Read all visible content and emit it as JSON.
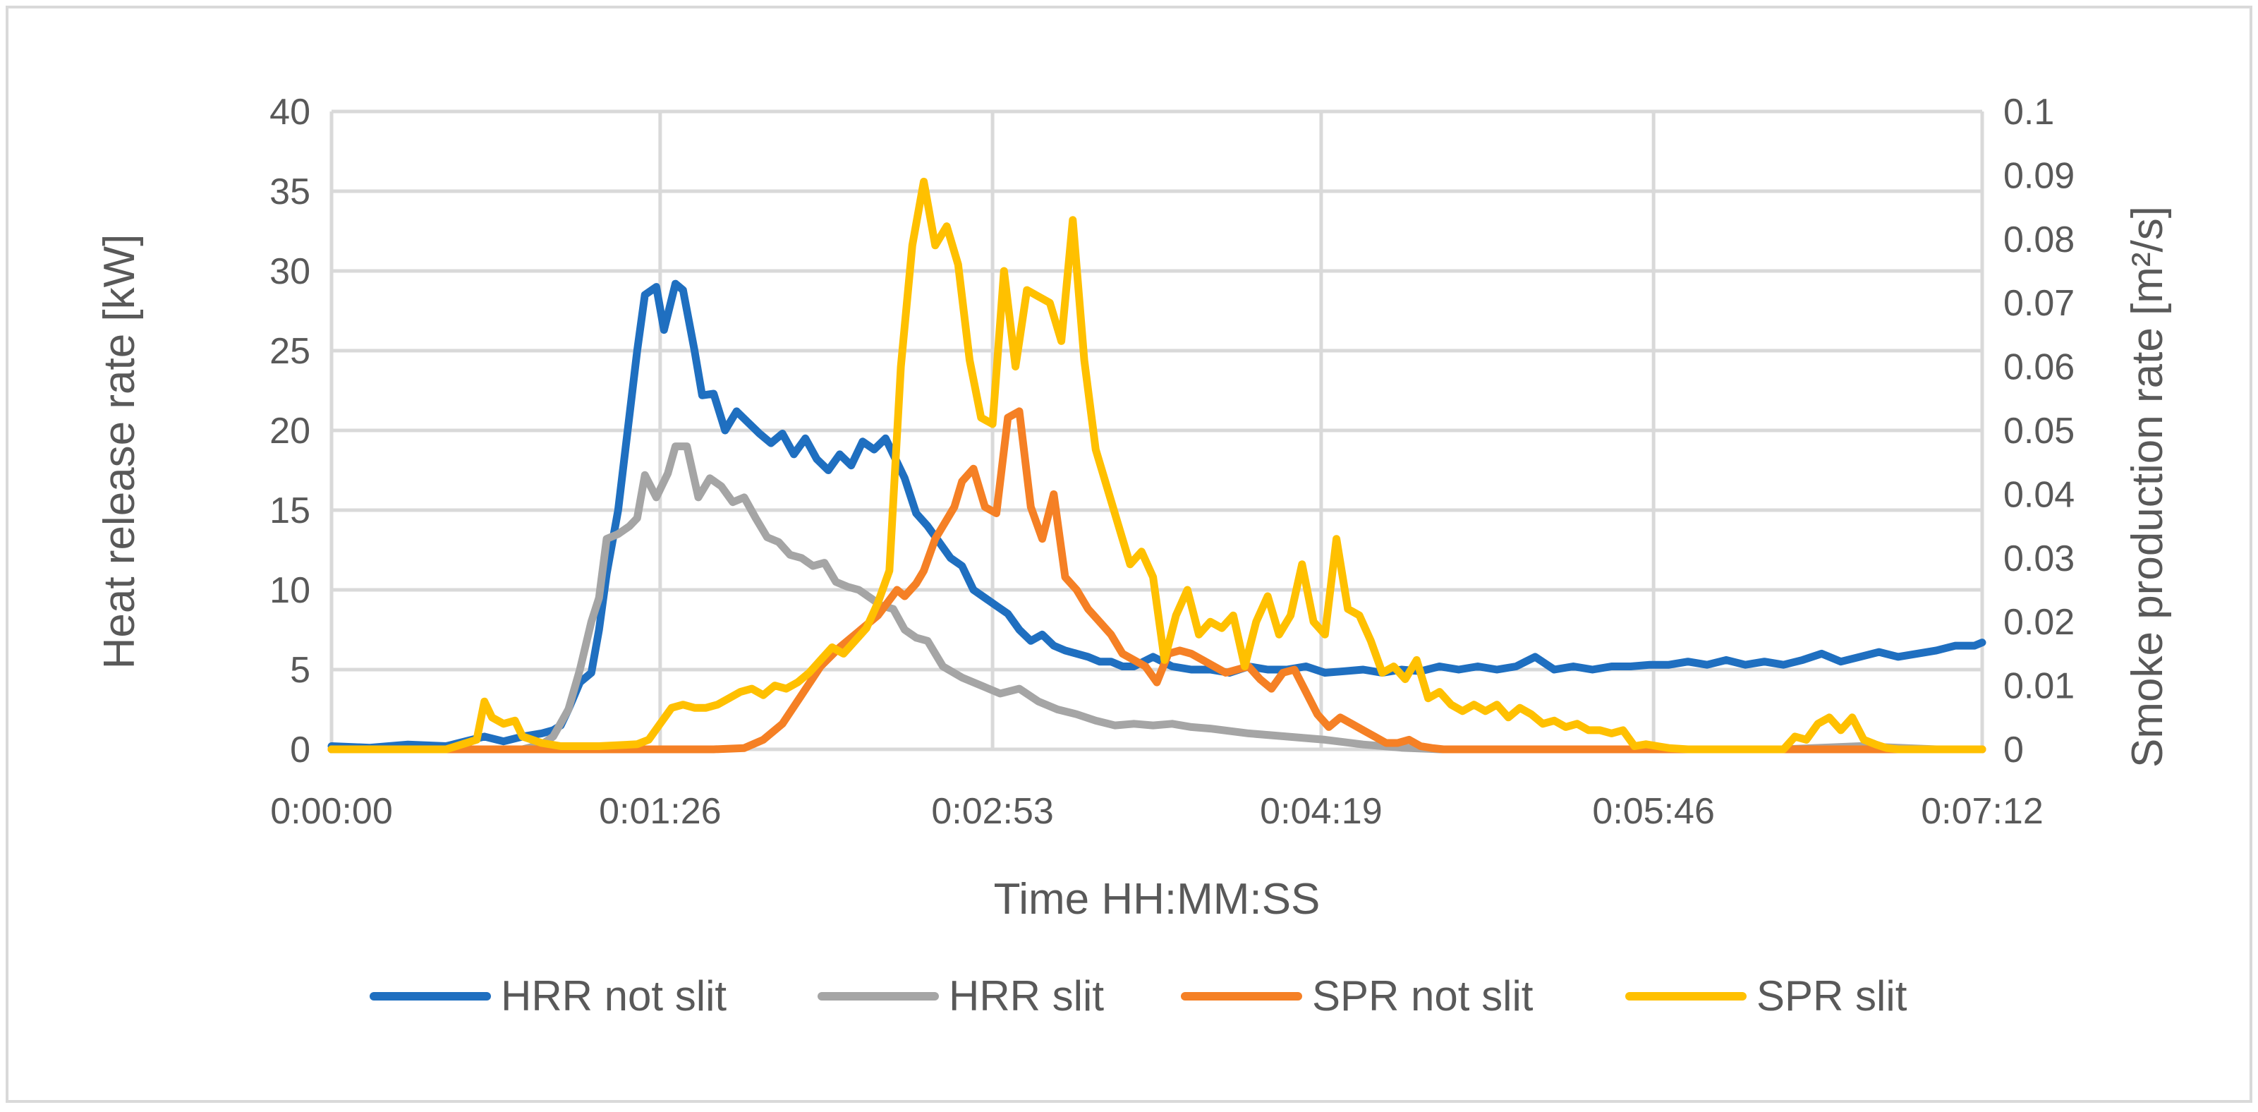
{
  "chart_data": {
    "type": "line",
    "title": "",
    "xlabel": "Time HH:MM:SS",
    "ylabel_left": "Heat release rate [kW]",
    "ylabel_right": "Smoke production rate [m²/s]",
    "x_unit": "seconds",
    "xlim": [
      0,
      432
    ],
    "x_ticks": [
      {
        "value": 0,
        "label": "0:00:00"
      },
      {
        "value": 86,
        "label": "0:01:26"
      },
      {
        "value": 173,
        "label": "0:02:53"
      },
      {
        "value": 259,
        "label": "0:04:19"
      },
      {
        "value": 346,
        "label": "0:05:46"
      },
      {
        "value": 432,
        "label": "0:07:12"
      }
    ],
    "ylim_left": [
      0,
      40
    ],
    "y_ticks_left": [
      "0",
      "5",
      "10",
      "15",
      "20",
      "25",
      "30",
      "35",
      "40"
    ],
    "ylim_right": [
      0,
      0.1
    ],
    "y_ticks_right": [
      "0",
      "0.01",
      "0.02",
      "0.03",
      "0.04",
      "0.05",
      "0.06",
      "0.07",
      "0.08",
      "0.09",
      "0.1"
    ],
    "grid": true,
    "legend_position": "bottom",
    "series": [
      {
        "name": "HRR not slit",
        "axis": "left",
        "color": "#1f6fc0",
        "x": [
          0,
          10,
          20,
          30,
          35,
          40,
          45,
          50,
          55,
          58,
          60,
          62,
          65,
          68,
          70,
          72,
          75,
          78,
          80,
          82,
          85,
          87,
          90,
          92,
          95,
          97,
          100,
          103,
          106,
          109,
          112,
          115,
          118,
          121,
          124,
          127,
          130,
          133,
          136,
          139,
          142,
          145,
          148,
          150,
          153,
          156,
          159,
          162,
          165,
          168,
          171,
          174,
          177,
          180,
          183,
          186,
          189,
          192,
          195,
          198,
          201,
          204,
          207,
          210,
          215,
          220,
          225,
          230,
          235,
          240,
          245,
          250,
          255,
          260,
          265,
          270,
          275,
          280,
          285,
          290,
          295,
          300,
          305,
          310,
          315,
          320,
          325,
          330,
          335,
          340,
          345,
          350,
          355,
          360,
          365,
          370,
          375,
          380,
          385,
          390,
          395,
          400,
          405,
          410,
          415,
          420,
          425,
          430,
          432
        ],
        "y": [
          0.2,
          0.1,
          0.3,
          0.2,
          0.5,
          0.8,
          0.5,
          0.8,
          1.0,
          1.2,
          1.5,
          2.5,
          4.2,
          4.8,
          7.5,
          11,
          15,
          21,
          25,
          28.5,
          29,
          26.3,
          29.2,
          28.8,
          25,
          22.2,
          22.3,
          20,
          21.2,
          20.5,
          19.8,
          19.2,
          19.8,
          18.5,
          19.5,
          18.2,
          17.5,
          18.5,
          17.8,
          19.3,
          18.8,
          19.5,
          18,
          17,
          14.8,
          14,
          13,
          12,
          11.5,
          10,
          9.5,
          9,
          8.5,
          7.5,
          6.8,
          7.2,
          6.5,
          6.2,
          6.0,
          5.8,
          5.5,
          5.5,
          5.2,
          5.2,
          5.8,
          5.2,
          5.0,
          5.0,
          4.8,
          5.2,
          5.0,
          5.0,
          5.2,
          4.8,
          4.9,
          5.0,
          4.8,
          5.0,
          4.9,
          5.2,
          5.0,
          5.2,
          5.0,
          5.2,
          5.8,
          5.0,
          5.2,
          5.0,
          5.2,
          5.2,
          5.3,
          5.3,
          5.5,
          5.3,
          5.6,
          5.3,
          5.5,
          5.3,
          5.6,
          6.0,
          5.5,
          5.8,
          6.1,
          5.8,
          6.0,
          6.2,
          6.5,
          6.5,
          6.7
        ]
      },
      {
        "name": "HRR slit",
        "axis": "left",
        "color": "#a5a5a5",
        "x": [
          0,
          20,
          40,
          50,
          55,
          58,
          62,
          65,
          68,
          70,
          72,
          75,
          78,
          80,
          82,
          85,
          88,
          90,
          93,
          96,
          99,
          102,
          105,
          108,
          111,
          114,
          117,
          120,
          123,
          126,
          129,
          132,
          135,
          138,
          141,
          144,
          147,
          150,
          153,
          156,
          160,
          165,
          170,
          175,
          180,
          185,
          190,
          195,
          200,
          205,
          210,
          215,
          220,
          225,
          230,
          240,
          250,
          260,
          270,
          280,
          290,
          300,
          320,
          340,
          360,
          380,
          400,
          420,
          432
        ],
        "y": [
          0,
          0,
          0,
          0,
          0.3,
          0.8,
          2.5,
          5.0,
          8.0,
          9.5,
          13.2,
          13.5,
          14,
          14.5,
          17.2,
          15.8,
          17.3,
          19,
          19,
          15.8,
          17,
          16.5,
          15.5,
          15.8,
          14.5,
          13.3,
          13,
          12.2,
          12.0,
          11.5,
          11.7,
          10.5,
          10.2,
          10,
          9.5,
          9.0,
          8.8,
          7.5,
          7,
          6.8,
          5.2,
          4.5,
          4.0,
          3.5,
          3.8,
          3.0,
          2.5,
          2.2,
          1.8,
          1.5,
          1.6,
          1.5,
          1.6,
          1.4,
          1.3,
          1.0,
          0.8,
          0.6,
          0.3,
          0.1,
          0,
          0,
          0,
          0,
          0,
          0,
          0.2,
          0,
          0
        ]
      },
      {
        "name": "SPR not slit",
        "axis": "right",
        "color": "#f58025",
        "x": [
          0,
          50,
          100,
          108,
          113,
          118,
          123,
          128,
          133,
          138,
          143,
          148,
          150,
          153,
          155,
          158,
          160,
          163,
          165,
          168,
          171,
          174,
          177,
          180,
          183,
          186,
          189,
          192,
          195,
          198,
          201,
          204,
          207,
          210,
          213,
          216,
          219,
          222,
          225,
          228,
          231,
          234,
          237,
          240,
          243,
          246,
          249,
          252,
          255,
          258,
          261,
          264,
          267,
          270,
          273,
          276,
          279,
          282,
          285,
          288,
          291,
          294,
          297,
          300,
          432
        ],
        "y": [
          0,
          0,
          0,
          0.0002,
          0.0015,
          0.004,
          0.0085,
          0.013,
          0.016,
          0.0185,
          0.021,
          0.025,
          0.024,
          0.026,
          0.028,
          0.033,
          0.035,
          0.038,
          0.042,
          0.044,
          0.038,
          0.037,
          0.052,
          0.053,
          0.038,
          0.033,
          0.04,
          0.027,
          0.025,
          0.022,
          0.02,
          0.018,
          0.015,
          0.014,
          0.013,
          0.0105,
          0.015,
          0.0155,
          0.015,
          0.014,
          0.013,
          0.012,
          0.0125,
          0.013,
          0.011,
          0.0095,
          0.012,
          0.0125,
          0.009,
          0.0055,
          0.0035,
          0.005,
          0.004,
          0.003,
          0.002,
          0.001,
          0.001,
          0.0015,
          0.0005,
          0.0002,
          0,
          0,
          0,
          0,
          0
        ]
      },
      {
        "name": "SPR slit",
        "axis": "right",
        "color": "#ffc000",
        "x": [
          0,
          30,
          38,
          40,
          42,
          45,
          48,
          50,
          55,
          60,
          70,
          80,
          83,
          86,
          89,
          92,
          95,
          98,
          101,
          104,
          107,
          110,
          113,
          116,
          119,
          122,
          125,
          128,
          131,
          134,
          137,
          140,
          143,
          146,
          149,
          152,
          155,
          158,
          161,
          164,
          167,
          170,
          173,
          176,
          179,
          182,
          185,
          188,
          191,
          194,
          197,
          200,
          203,
          206,
          209,
          212,
          215,
          218,
          221,
          224,
          227,
          230,
          233,
          236,
          239,
          242,
          245,
          248,
          251,
          254,
          257,
          260,
          263,
          266,
          269,
          272,
          275,
          278,
          281,
          284,
          287,
          290,
          293,
          296,
          299,
          302,
          305,
          308,
          311,
          314,
          317,
          320,
          323,
          326,
          329,
          332,
          335,
          338,
          341,
          344,
          347,
          350,
          355,
          360,
          365,
          370,
          375,
          380,
          383,
          386,
          389,
          392,
          395,
          398,
          401,
          404,
          407,
          410,
          420,
          432
        ],
        "y": [
          0,
          0,
          0.0015,
          0.0075,
          0.005,
          0.004,
          0.0045,
          0.002,
          0.001,
          0.0005,
          0.0005,
          0.0008,
          0.0015,
          0.004,
          0.0065,
          0.007,
          0.0065,
          0.0065,
          0.007,
          0.008,
          0.009,
          0.0095,
          0.0085,
          0.01,
          0.0095,
          0.0105,
          0.012,
          0.014,
          0.016,
          0.015,
          0.017,
          0.019,
          0.023,
          0.028,
          0.06,
          0.079,
          0.089,
          0.079,
          0.082,
          0.076,
          0.061,
          0.052,
          0.051,
          0.075,
          0.06,
          0.072,
          0.071,
          0.07,
          0.064,
          0.083,
          0.061,
          0.047,
          0.041,
          0.035,
          0.029,
          0.031,
          0.027,
          0.014,
          0.021,
          0.025,
          0.018,
          0.02,
          0.019,
          0.021,
          0.013,
          0.02,
          0.024,
          0.018,
          0.021,
          0.029,
          0.02,
          0.018,
          0.033,
          0.022,
          0.021,
          0.017,
          0.012,
          0.013,
          0.011,
          0.014,
          0.008,
          0.009,
          0.007,
          0.006,
          0.007,
          0.006,
          0.007,
          0.005,
          0.0065,
          0.0055,
          0.004,
          0.0045,
          0.0035,
          0.004,
          0.003,
          0.003,
          0.0025,
          0.003,
          0.0005,
          0.0008,
          0.0005,
          0.0002,
          0,
          0,
          0,
          0,
          0,
          0,
          0.002,
          0.0015,
          0.004,
          0.005,
          0.003,
          0.005,
          0.0015,
          0.0008,
          0.0002,
          0,
          0,
          0
        ]
      }
    ]
  }
}
